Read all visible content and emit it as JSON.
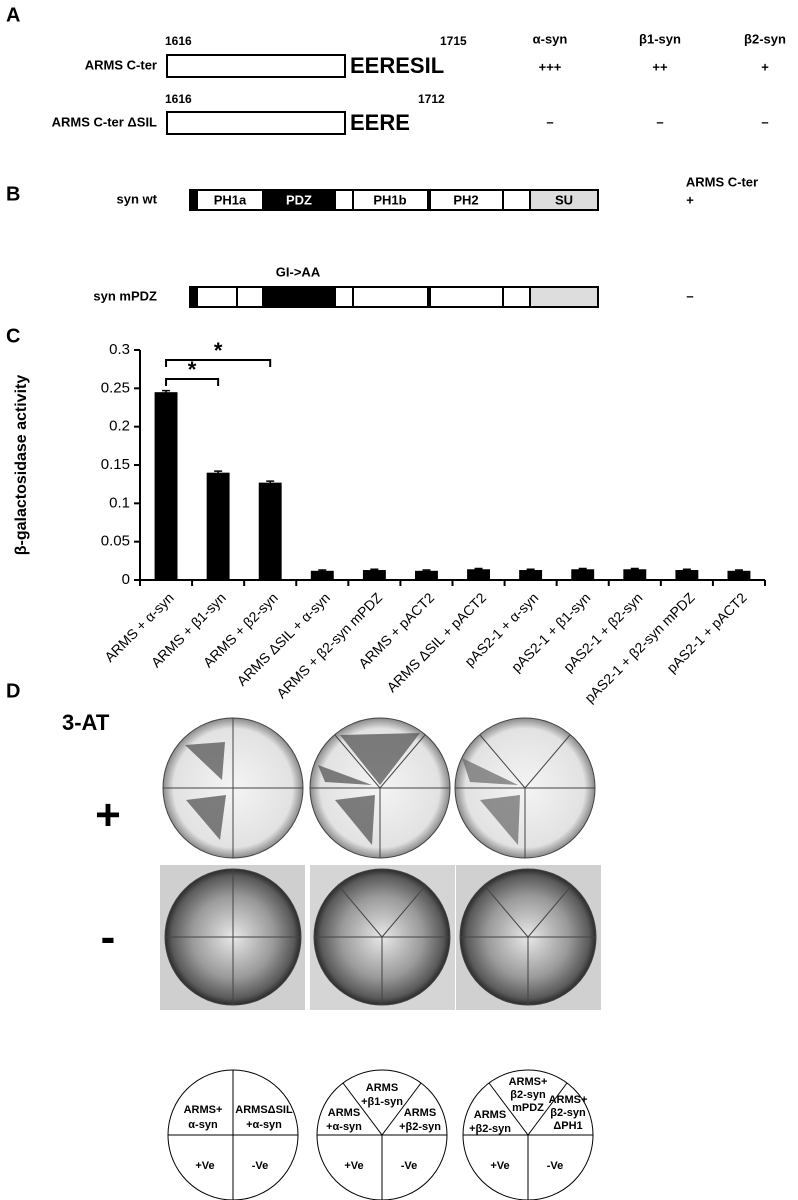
{
  "panel_a": {
    "label": "A",
    "columns": [
      "α-syn",
      "β1-syn",
      "β2-syn"
    ],
    "rows": [
      {
        "name": "ARMS C-ter",
        "start": 1616,
        "end": 1715,
        "sequence": "EERESIL",
        "results": [
          "+++",
          "++",
          "+"
        ]
      },
      {
        "name": "ARMS C-ter ΔSIL",
        "start": 1616,
        "end": 1712,
        "sequence": "EERE",
        "results": [
          "–",
          "–",
          "–"
        ]
      }
    ]
  },
  "panel_b": {
    "label": "B",
    "column": "ARMS C-ter",
    "constructs": [
      {
        "name": "syn wt",
        "domains": [
          "PH1a",
          "PDZ",
          "PH1b",
          "PH2",
          "SU"
        ],
        "result": "+"
      },
      {
        "name": "syn mPDZ",
        "mutation": "GI->AA",
        "result": "–"
      }
    ]
  },
  "panel_c": {
    "label": "C"
  },
  "chart_data": {
    "type": "bar",
    "y_label": "β-galactosidase activity",
    "categories": [
      "ARMS + α-syn",
      "ARMS + β1-syn",
      "ARMS + β2-syn",
      "ARMS ΔSIL + α-syn",
      "ARMS + β2-syn mPDZ",
      "ARMS + pACT2",
      "ARMS ΔSIL + pACT2",
      "pAS2-1 + α-syn",
      "pAS2-1 + β1-syn",
      "pAS2-1 + β2-syn",
      "pAS2-1 + β2-syn mPDZ",
      "pAS2-1 + pACT2"
    ],
    "values": [
      0.245,
      0.14,
      0.127,
      0.012,
      0.013,
      0.012,
      0.014,
      0.013,
      0.014,
      0.014,
      0.013,
      0.012
    ],
    "errors": [
      0.002,
      0.002,
      0.002,
      0.001,
      0.001,
      0.001,
      0.001,
      0.001,
      0.001,
      0.001,
      0.001,
      0.001
    ],
    "color": "#000000",
    "ylim": [
      0,
      0.3
    ],
    "yticks": [
      0,
      0.05,
      0.1,
      0.15,
      0.2,
      0.25,
      0.3
    ],
    "annotations": [
      "*",
      "*"
    ]
  },
  "panel_d": {
    "label": "D",
    "condition": "3-AT",
    "rows": [
      "+",
      "-"
    ],
    "plates": [
      {
        "sectors": [
          [
            "ARMS+",
            "α-syn"
          ],
          [
            "ARMSΔSIL",
            "+α-syn"
          ],
          [
            "+Ve"
          ],
          [
            "-Ve"
          ]
        ]
      },
      {
        "sectors": [
          [
            "ARMS",
            "+β1-syn"
          ],
          [
            "ARMS",
            "+α-syn"
          ],
          [
            "ARMS",
            "+β2-syn"
          ],
          [
            "+Ve"
          ],
          [
            "-Ve"
          ]
        ]
      },
      {
        "sectors": [
          [
            "ARMS+",
            "β2-syn",
            "mPDZ"
          ],
          [
            "ARMS",
            "+β2-syn"
          ],
          [
            "ARMS+",
            "β2-syn",
            "ΔPH1"
          ],
          [
            "+Ve"
          ],
          [
            "-Ve"
          ]
        ]
      }
    ]
  }
}
